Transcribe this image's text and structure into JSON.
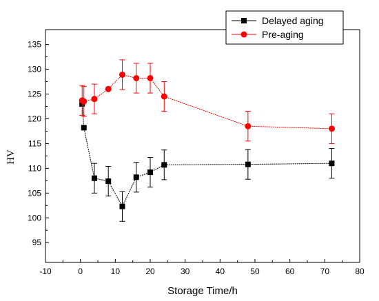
{
  "chart_data": {
    "type": "line",
    "xlabel": "Storage Time/h",
    "ylabel": "HV",
    "xlim": [
      -10,
      80
    ],
    "ylim": [
      91,
      138
    ],
    "xticks": [
      -10,
      0,
      10,
      20,
      30,
      40,
      50,
      60,
      70,
      80
    ],
    "yticks": [
      95,
      100,
      105,
      110,
      115,
      120,
      125,
      130,
      135
    ],
    "legend_position": "top-right",
    "grid": false,
    "series": [
      {
        "name": "Delayed aging",
        "color": "#000000",
        "marker": "square",
        "x": [
          0.5,
          1,
          4,
          8,
          12,
          16,
          20,
          24,
          48,
          72
        ],
        "y": [
          123.0,
          118.2,
          108.0,
          107.4,
          102.3,
          108.2,
          109.2,
          110.7,
          110.8,
          111.0
        ],
        "err": [
          0,
          0,
          3.0,
          3.0,
          3.0,
          3.0,
          3.0,
          3.0,
          3.0,
          3.0
        ]
      },
      {
        "name": "Pre-aging",
        "color": "#ff0000",
        "marker": "circle",
        "x": [
          0.5,
          1,
          4,
          8,
          12,
          16,
          20,
          24,
          48,
          72
        ],
        "y": [
          123.7,
          123.5,
          124.0,
          126.0,
          128.9,
          128.2,
          128.2,
          124.5,
          118.5,
          118.0
        ],
        "err": [
          3.0,
          3.0,
          3.0,
          0,
          3.0,
          3.0,
          3.0,
          3.0,
          3.0,
          3.0
        ]
      }
    ]
  }
}
